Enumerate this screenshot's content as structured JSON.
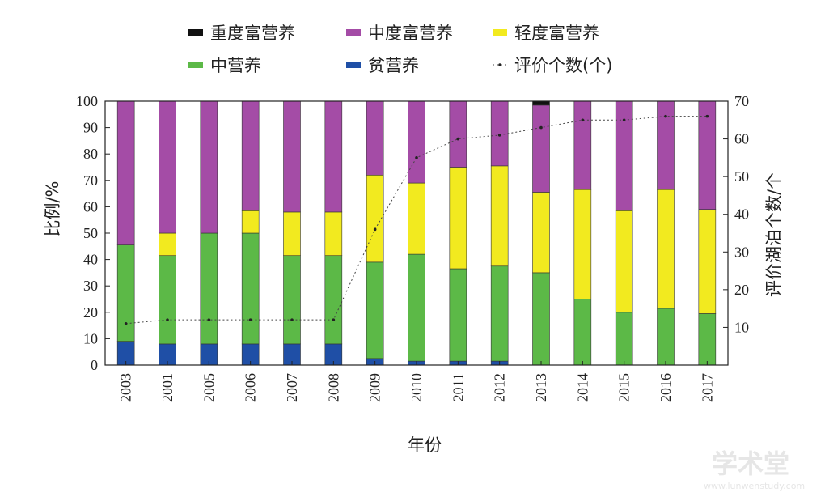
{
  "chart_data": {
    "type": "bar",
    "stacked": true,
    "categories": [
      "2003",
      "2001",
      "2005",
      "2006",
      "2007",
      "2008",
      "2009",
      "2010",
      "2011",
      "2012",
      "2013",
      "2014",
      "2015",
      "2016",
      "2017"
    ],
    "series": [
      {
        "name": "贫营养",
        "color": "#1f4fa6",
        "values": [
          9,
          8,
          8,
          8,
          8,
          8,
          2.5,
          1.5,
          1.5,
          1.5,
          0,
          0,
          0,
          0,
          0
        ]
      },
      {
        "name": "中营养",
        "color": "#5cb947",
        "values": [
          36.5,
          33.5,
          42,
          42,
          33.5,
          33.5,
          36.5,
          40.5,
          35,
          36,
          35,
          25,
          20,
          21.5,
          19.5
        ]
      },
      {
        "name": "轻度富营养",
        "color": "#f2ea1f",
        "values": [
          0,
          8.5,
          0,
          8.5,
          16.5,
          16.5,
          33,
          27,
          38.5,
          38,
          30.5,
          41.5,
          38.5,
          45,
          39.5
        ]
      },
      {
        "name": "中度富营养",
        "color": "#a44ca6",
        "values": [
          54.5,
          50,
          50,
          41.5,
          42,
          42,
          28,
          31,
          25,
          24.5,
          33,
          33.5,
          41.5,
          33.5,
          41
        ]
      },
      {
        "name": "重度富营养",
        "color": "#111111",
        "values": [
          0,
          0,
          0,
          0,
          0,
          0,
          0,
          0,
          0,
          0,
          1.5,
          0,
          0,
          0,
          0
        ]
      }
    ],
    "line_series": {
      "name": "评价个数(个)",
      "axis": "right",
      "values": [
        11,
        12,
        12,
        12,
        12,
        12,
        36,
        55,
        60,
        61,
        63,
        65,
        65,
        66,
        66
      ]
    },
    "xlabel": "年份",
    "ylabel": "比例/%",
    "y2label": "评价湖泊个数/个",
    "ylim": [
      0,
      100
    ],
    "y2lim": [
      0,
      70
    ],
    "yticks": [
      0,
      10,
      20,
      30,
      40,
      50,
      60,
      70,
      80,
      90,
      100
    ],
    "y2ticks": [
      10,
      20,
      30,
      40,
      50,
      60,
      70
    ],
    "legend_order": [
      "重度富营养",
      "中度富营养",
      "轻度富营养",
      "中营养",
      "贫营养",
      "评价个数(个)"
    ],
    "legend_position": "top"
  },
  "watermark": {
    "text": "学术堂",
    "subtext": "www.lunwenstudy.com"
  }
}
